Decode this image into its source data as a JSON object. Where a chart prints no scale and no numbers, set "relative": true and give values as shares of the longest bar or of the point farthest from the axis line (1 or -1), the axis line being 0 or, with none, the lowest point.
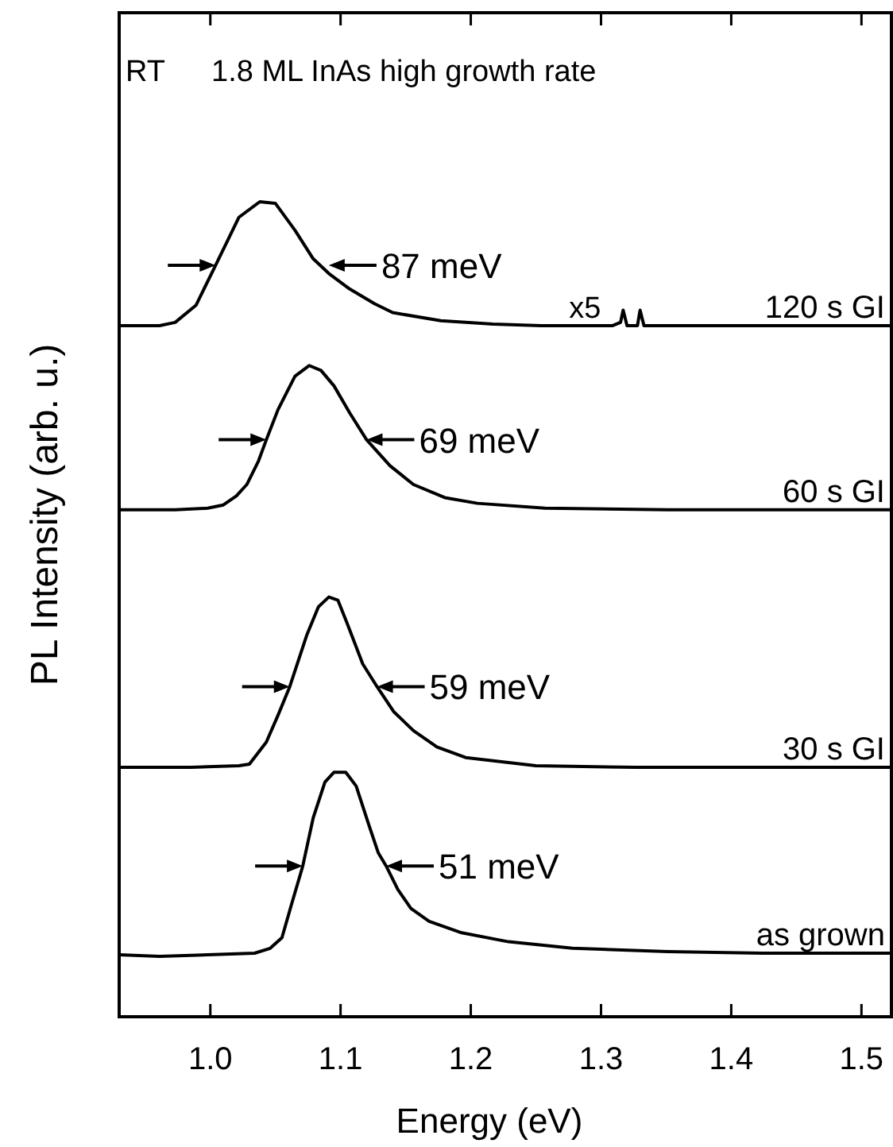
{
  "chart_data": {
    "type": "line",
    "title": "1.8 ML InAs high growth rate",
    "xlabel": "Energy (eV)",
    "ylabel": "PL Intensity (arb. u.)",
    "relative": true,
    "xlim": [
      0.93,
      1.523
    ],
    "xticks": [
      {
        "value": 1.0,
        "label": "1.0"
      },
      1.1,
      1.2,
      1.3,
      1.4,
      1.5
    ],
    "annotations": [
      "RT",
      {
        "text": "87 meV",
        "x": 1.091,
        "y": 0.922
      },
      {
        "text": "69 meV",
        "x": 1.12,
        "y": 0.708
      },
      {
        "text": "59 meV",
        "x": 1.128,
        "y": 0.405
      },
      {
        "text": "51 meV",
        "x": 1.135,
        "y": 0.185
      },
      {
        "text": "x5",
        "x": 1.3,
        "y": 0.848
      }
    ],
    "series": [
      {
        "name": "120 s GI",
        "color": "#000000",
        "x": [
          0.93,
          0.961,
          0.973,
          0.989,
          1.004,
          1.022,
          1.038,
          1.05,
          1.065,
          1.079,
          1.091,
          1.107,
          1.126,
          1.14,
          1.177,
          1.217,
          1.254,
          1.309,
          1.315,
          1.317,
          1.32,
          1.328,
          1.33,
          1.333,
          1.351,
          1.523
        ],
        "values": [
          0.848,
          0.848,
          0.852,
          0.873,
          0.922,
          0.981,
          1,
          0.998,
          0.965,
          0.93,
          0.912,
          0.893,
          0.875,
          0.864,
          0.854,
          0.85,
          0.848,
          0.848,
          0.852,
          0.867,
          0.848,
          0.848,
          0.867,
          0.848,
          0.848,
          0.848
        ]
      },
      {
        "name": "60 s GI",
        "color": "#000000",
        "x": [
          0.93,
          0.973,
          0.998,
          1.01,
          1.02,
          1.028,
          1.037,
          1.043,
          1.052,
          1.065,
          1.076,
          1.085,
          1.095,
          1.107,
          1.12,
          1.138,
          1.156,
          1.18,
          1.205,
          1.257,
          1.351,
          1.523
        ],
        "values": [
          0.622,
          0.622,
          0.624,
          0.628,
          0.639,
          0.653,
          0.682,
          0.708,
          0.745,
          0.786,
          0.799,
          0.793,
          0.774,
          0.741,
          0.708,
          0.676,
          0.653,
          0.637,
          0.63,
          0.624,
          0.622,
          0.622
        ]
      },
      {
        "name": "30 s GI",
        "color": "#000000",
        "x": [
          0.93,
          0.985,
          1.022,
          1.03,
          1.043,
          1.052,
          1.061,
          1.074,
          1.083,
          1.091,
          1.098,
          1.105,
          1.117,
          1.128,
          1.141,
          1.156,
          1.174,
          1.196,
          1.25,
          1.327,
          1.523
        ],
        "values": [
          0.306,
          0.306,
          0.308,
          0.31,
          0.337,
          0.37,
          0.405,
          0.468,
          0.503,
          0.515,
          0.511,
          0.483,
          0.433,
          0.405,
          0.374,
          0.351,
          0.331,
          0.318,
          0.308,
          0.306,
          0.306
        ]
      },
      {
        "name": "as grown",
        "color": "#000000",
        "x": [
          0.93,
          0.961,
          0.998,
          1.034,
          1.046,
          1.055,
          1.062,
          1.071,
          1.079,
          1.088,
          1.095,
          1.104,
          1.112,
          1.122,
          1.129,
          1.135,
          1.144,
          1.154,
          1.168,
          1.193,
          1.229,
          1.278,
          1.351,
          1.424,
          1.523
        ],
        "values": [
          0.076,
          0.074,
          0.076,
          0.078,
          0.084,
          0.097,
          0.136,
          0.185,
          0.244,
          0.288,
          0.3,
          0.3,
          0.283,
          0.234,
          0.201,
          0.185,
          0.156,
          0.133,
          0.117,
          0.103,
          0.092,
          0.084,
          0.08,
          0.078,
          0.078
        ]
      }
    ]
  }
}
